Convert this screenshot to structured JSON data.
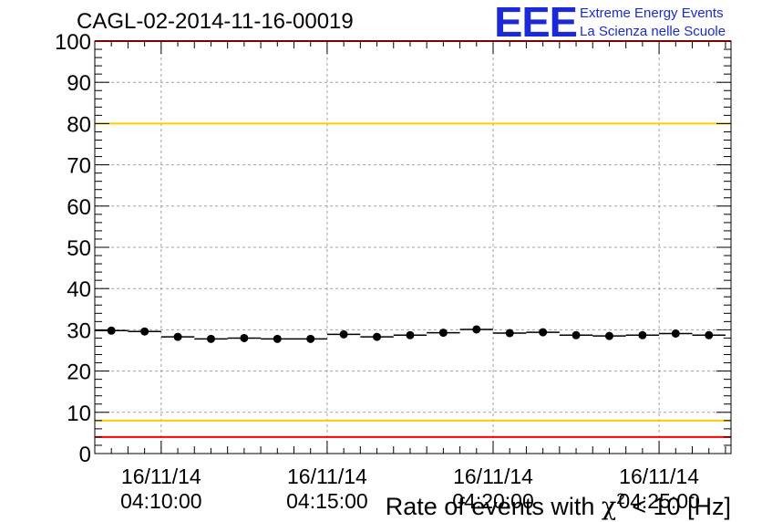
{
  "header": {
    "run_title": "CAGL-02-2014-11-16-00019",
    "logo_mark": "EEE",
    "logo_line1": "Extreme Energy Events",
    "logo_line2": "La Scienza nelle Scuole"
  },
  "chart_data": {
    "type": "scatter",
    "xlabel_prefix": "Rate of events with ",
    "xlabel_symbol": "χ",
    "xlabel_sup": "2",
    "xlabel_suffix": " < 10 [Hz]",
    "ylim": [
      0,
      100
    ],
    "yticks": [
      0,
      10,
      20,
      30,
      40,
      50,
      60,
      70,
      80,
      90,
      100
    ],
    "xlim": [
      "04:08:00",
      "04:27:10"
    ],
    "xticks": [
      {
        "time": "04:10:00",
        "date": "16/11/14",
        "clock": "04:10:00"
      },
      {
        "time": "04:15:00",
        "date": "16/11/14",
        "clock": "04:15:00"
      },
      {
        "time": "04:20:00",
        "date": "16/11/14",
        "clock": "04:20:00"
      },
      {
        "time": "04:25:00",
        "date": "16/11/14",
        "clock": "04:25:00"
      }
    ],
    "grid": true,
    "reference_lines": [
      {
        "y": 100,
        "color": "#ff0000"
      },
      {
        "y": 80,
        "color": "#ffcc00"
      },
      {
        "y": 8,
        "color": "#ffcc00"
      },
      {
        "y": 4,
        "color": "#ff0000"
      }
    ],
    "series": [
      {
        "marker_color": "#000000",
        "points": [
          {
            "x": "04:08:30",
            "y": 29.8
          },
          {
            "x": "04:09:30",
            "y": 29.6
          },
          {
            "x": "04:10:30",
            "y": 28.3
          },
          {
            "x": "04:11:30",
            "y": 27.8
          },
          {
            "x": "04:12:30",
            "y": 28.0
          },
          {
            "x": "04:13:30",
            "y": 27.8
          },
          {
            "x": "04:14:30",
            "y": 27.8
          },
          {
            "x": "04:15:30",
            "y": 28.9
          },
          {
            "x": "04:16:30",
            "y": 28.3
          },
          {
            "x": "04:17:30",
            "y": 28.7
          },
          {
            "x": "04:18:30",
            "y": 29.3
          },
          {
            "x": "04:19:30",
            "y": 30.1
          },
          {
            "x": "04:20:30",
            "y": 29.2
          },
          {
            "x": "04:21:30",
            "y": 29.4
          },
          {
            "x": "04:22:30",
            "y": 28.7
          },
          {
            "x": "04:23:30",
            "y": 28.5
          },
          {
            "x": "04:24:30",
            "y": 28.7
          },
          {
            "x": "04:25:30",
            "y": 29.1
          },
          {
            "x": "04:26:30",
            "y": 28.7
          }
        ]
      }
    ]
  }
}
